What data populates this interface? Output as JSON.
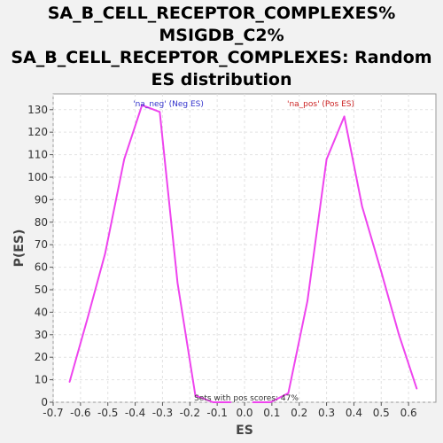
{
  "chart_data": {
    "type": "line",
    "title": [
      "SA_B_CELL_RECEPTOR_COMPLEXES%",
      "MSIGDB_C2%",
      "SA_B_CELL_RECEPTOR_COMPLEXES: Random",
      "ES distribution"
    ],
    "xlabel": "ES",
    "ylabel": "P(ES)",
    "xlim": [
      -0.7,
      0.7
    ],
    "ylim": [
      0,
      137
    ],
    "xticks": [
      -0.7,
      -0.6,
      -0.5,
      -0.4,
      -0.3,
      -0.2,
      -0.1,
      0.0,
      0.1,
      0.2,
      0.3,
      0.4,
      0.5,
      0.6
    ],
    "xtick_labels": [
      "-0.7",
      "-0.6",
      "-0.5",
      "-0.4",
      "-0.3",
      "-0.2",
      "-0.1",
      "0.0",
      "0.1",
      "0.2",
      "0.3",
      "0.4",
      "0.5",
      "0.6"
    ],
    "yticks": [
      0,
      10,
      20,
      30,
      40,
      50,
      60,
      70,
      80,
      90,
      100,
      110,
      120,
      130
    ],
    "grid": true,
    "line_color": "#ee44ee",
    "series": [
      {
        "name": "'na_neg' (Neg ES)",
        "color": "#3333cc",
        "x": [
          -0.64,
          -0.575,
          -0.51,
          -0.44,
          -0.375,
          -0.31,
          -0.245,
          -0.18,
          -0.115,
          -0.05
        ],
        "y": [
          9,
          37,
          66,
          108,
          132,
          129,
          53,
          3,
          0,
          0
        ]
      },
      {
        "name": "'na_pos' (Pos ES)",
        "color": "#cc2222",
        "x": [
          0.03,
          0.095,
          0.16,
          0.23,
          0.3,
          0.365,
          0.43,
          0.5,
          0.565,
          0.63
        ],
        "y": [
          0,
          0,
          4,
          45,
          108,
          127,
          87,
          58,
          30,
          6
        ]
      }
    ],
    "annotation": "Sets with pos scores: 47%"
  }
}
